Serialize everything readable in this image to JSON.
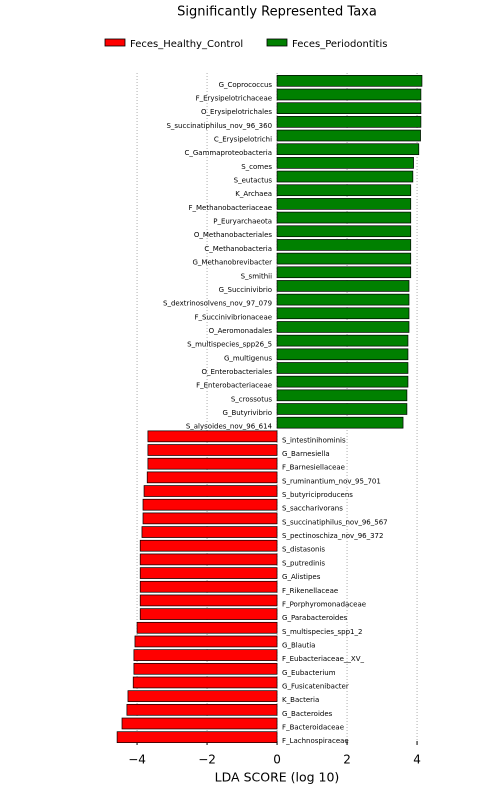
{
  "chart_data": {
    "type": "bar",
    "orientation": "horizontal",
    "title": "Significantly Represented Taxa",
    "xlabel": "LDA SCORE (log 10)",
    "categories": [
      "G_Coprococcus",
      "F_Erysipelotrichaceae",
      "O_Erysipelotrichales",
      "S_succinatiphilus_nov_96_360",
      "C_Erysipelotrichi",
      "C_Gammaproteobacteria",
      "S_comes",
      "S_eutactus",
      "K_Archaea",
      "F_Methanobacteriaceae",
      "P_Euryarchaeota",
      "O_Methanobacteriales",
      "C_Methanobacteria",
      "G_Methanobrevibacter",
      "S_smithii",
      "G_Succinivibrio",
      "S_dextrinosolvens_nov_97_079",
      "F_Succinivibrionaceae",
      "O_Aeromonadales",
      "S_multispecies_spp26_5",
      "G_multigenus",
      "O_Enterobacteriales",
      "F_Enterobacteriaceae",
      "S_crossotus",
      "G_Butyrivibrio",
      "S_alysoides_nov_96_614",
      "S_intestinihominis",
      "G_Barnesiella",
      "F_Barnesiellaceae",
      "S_ruminantium_nov_95_701",
      "S_butyriciproducens",
      "S_saccharivorans",
      "S_succinatiphilus_nov_96_567",
      "S_pectinoschiza_nov_96_372",
      "S_distasonis",
      "S_putredinis",
      "G_Alistipes",
      "F_Rikenellaceae",
      "F_Porphyromonadaceae",
      "G_Parabacteroides",
      "S_multispecies_spp1_2",
      "G_Blautia",
      "F_Eubacteriaceae__XV_",
      "G_Eubacterium",
      "G_Fusicatenibacter",
      "K_Bacteria",
      "G_Bacteroides",
      "F_Bacteroidaceae",
      "F_Lachnospiraceae"
    ],
    "series": [
      {
        "name": "Feces_Healthy_Control",
        "color": "#ff0000",
        "values": [
          null,
          null,
          null,
          null,
          null,
          null,
          null,
          null,
          null,
          null,
          null,
          null,
          null,
          null,
          null,
          null,
          null,
          null,
          null,
          null,
          null,
          null,
          null,
          null,
          null,
          null,
          -3.69,
          -3.69,
          -3.69,
          -3.71,
          -3.8,
          -3.83,
          -3.83,
          -3.86,
          -3.91,
          -3.91,
          -3.91,
          -3.91,
          -3.91,
          -3.91,
          -4.0,
          -4.06,
          -4.09,
          -4.09,
          -4.11,
          -4.26,
          -4.29,
          -4.43,
          -4.57
        ]
      },
      {
        "name": "Feces_Periodontitis",
        "color": "#008000",
        "values": [
          4.14,
          4.11,
          4.11,
          4.11,
          4.1,
          4.05,
          3.9,
          3.88,
          3.82,
          3.82,
          3.82,
          3.82,
          3.82,
          3.82,
          3.82,
          3.77,
          3.77,
          3.77,
          3.77,
          3.74,
          3.74,
          3.74,
          3.74,
          3.71,
          3.71,
          3.6,
          null,
          null,
          null,
          null,
          null,
          null,
          null,
          null,
          null,
          null,
          null,
          null,
          null,
          null,
          null,
          null,
          null,
          null,
          null,
          null,
          null,
          null,
          null
        ]
      }
    ],
    "xlim": [
      -4.63,
      4.17
    ],
    "xticks": [
      {
        "value": -4,
        "label": "−4"
      },
      {
        "value": -2,
        "label": "−2"
      },
      0,
      2,
      4
    ],
    "grid": true,
    "legend": "top"
  }
}
